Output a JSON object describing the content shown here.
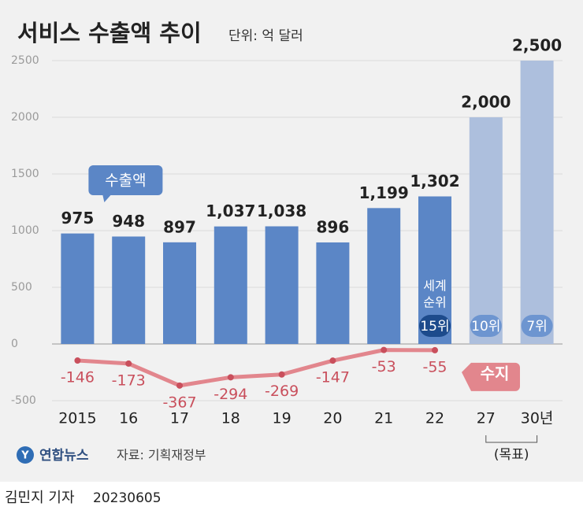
{
  "chart_data": {
    "type": "bar",
    "title": "서비스 수출액 추이",
    "unit": "단위: 억 달러",
    "categories": [
      "2015",
      "16",
      "17",
      "18",
      "19",
      "20",
      "21",
      "22",
      "27",
      "30년"
    ],
    "series": [
      {
        "name": "수출액",
        "type": "bar",
        "colors": [
          "#5b86c6",
          "#5b86c6",
          "#5b86c6",
          "#5b86c6",
          "#5b86c6",
          "#5b86c6",
          "#5b86c6",
          "#5b86c6",
          "#adbfdd",
          "#adbfdd"
        ],
        "values": [
          975,
          948,
          897,
          1037,
          1038,
          896,
          1199,
          1302,
          2000,
          2500
        ],
        "value_labels": [
          "975",
          "948",
          "897",
          "1,037",
          "1,038",
          "896",
          "1,199",
          "1,302",
          "2,000",
          "2,500"
        ]
      },
      {
        "name": "수지",
        "type": "line",
        "color": "#e2868d",
        "point_color": "#c94f5c",
        "values": [
          -146,
          -173,
          -367,
          -294,
          -269,
          -147,
          -53,
          -55,
          null,
          null
        ]
      }
    ],
    "ranks": [
      null,
      null,
      null,
      null,
      null,
      null,
      null,
      "15위",
      "10위",
      "7위"
    ],
    "rank_note": [
      "세계",
      "순위"
    ],
    "target_note": "(목표)",
    "ylim": [
      -600,
      2600
    ],
    "yticks": [
      -500,
      0,
      500,
      1000,
      1500,
      2000,
      2500
    ],
    "grid": true,
    "logo": "연합뉴스",
    "source": "자료: 기획재정부",
    "byline": "김민지 기자",
    "date": "20230605"
  }
}
